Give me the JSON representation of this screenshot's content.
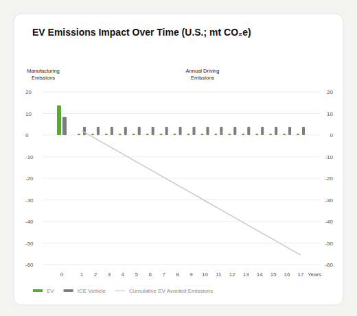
{
  "chart_data": {
    "type": "bar",
    "title": "EV Emissions Impact Over Time (U.S.; mt CO₂e)",
    "annotations": [
      "Manufacturing Emissions",
      "Annual Driving Emissions"
    ],
    "x_label": "Years",
    "categories": [
      "0",
      "1",
      "2",
      "3",
      "4",
      "5",
      "6",
      "7",
      "8",
      "9",
      "10",
      "11",
      "12",
      "13",
      "14",
      "15",
      "16",
      "17"
    ],
    "series": [
      {
        "name": "EV",
        "color": "#5aa832",
        "type": "bar",
        "values": [
          13.7,
          0.6,
          0.6,
          0.6,
          0.6,
          0.6,
          0.6,
          0.6,
          0.6,
          0.6,
          0.6,
          0.6,
          0.6,
          0.6,
          0.6,
          0.6,
          0.6,
          0.6
        ]
      },
      {
        "name": "ICE Vehicle",
        "color": "#7d7d7d",
        "type": "bar",
        "values": [
          8.3,
          3.8,
          3.8,
          3.8,
          3.8,
          3.8,
          3.8,
          3.8,
          3.8,
          3.8,
          3.8,
          3.8,
          3.8,
          3.8,
          3.8,
          3.8,
          3.8,
          3.8
        ]
      },
      {
        "name": "Cumulative EV Avoided Emissions",
        "color": "#c9c9c6",
        "type": "line",
        "values": [
          null,
          2,
          -1.6,
          -5.2,
          -8.8,
          -12.4,
          -16,
          -19.6,
          -23.2,
          -26.8,
          -30.4,
          -34,
          -37.6,
          -41.2,
          -44.8,
          -48.4,
          -52,
          -55.6
        ]
      }
    ],
    "ylim": [
      -60,
      20
    ],
    "yticks": [
      20,
      10,
      0,
      -10,
      -20,
      -30,
      -40,
      -50,
      -60
    ],
    "grid": true,
    "legend": "bottom"
  }
}
